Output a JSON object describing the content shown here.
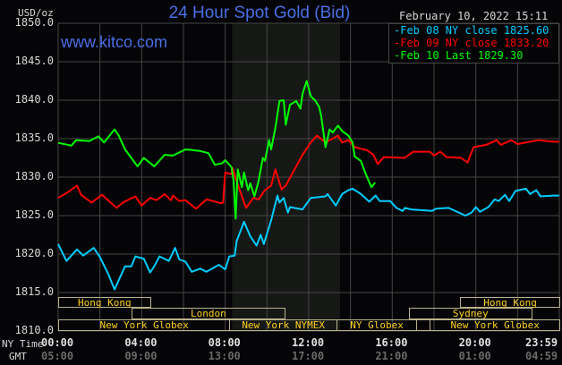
{
  "title": "24 Hour Spot Gold (Bid)",
  "website": "www.kitco.com",
  "timestamp": "February 10, 2022 15:11",
  "colors": {
    "feb08": "#00ccff",
    "feb09": "#ff0000",
    "feb10": "#00ff00",
    "title": "#4a6ee6",
    "session": "#ffd21e",
    "session_border": "#b8b08a",
    "grid": "#454545",
    "nymex_shade": "#161816"
  },
  "chart_data": {
    "type": "line",
    "title": "24 Hour Spot Gold (Bid)",
    "ylabel": "USD/oz",
    "ylim": [
      1810,
      1850
    ],
    "xlim_hours": [
      0,
      24
    ],
    "grid": true,
    "legend_placement": "top-right",
    "y_ticks": [
      "1850.0",
      "1845.0",
      "1840.0",
      "1835.0",
      "1830.0",
      "1825.0",
      "1820.0",
      "1815.0",
      "1810.0"
    ],
    "x_axis_label_ny": "NY Time",
    "x_axis_label_gmt": "GMT",
    "x_ticks_ny": [
      "00:00",
      "04:00",
      "08:00",
      "12:00",
      "16:00",
      "20:00",
      "23:59"
    ],
    "x_ticks_gmt": [
      "05:00",
      "09:00",
      "13:00",
      "17:00",
      "21:00",
      "01:00",
      "04:59"
    ],
    "series": [
      {
        "name": "Feb 08 NY close 1825.60",
        "key": "feb08",
        "label_parts": [
          "Feb 08 NY close",
          "1825.60"
        ],
        "points": [
          [
            0,
            1821.3
          ],
          [
            0.4,
            1819.1
          ],
          [
            0.9,
            1820.6
          ],
          [
            1.2,
            1819.8
          ],
          [
            1.7,
            1820.8
          ],
          [
            2.0,
            1819.6
          ],
          [
            2.4,
            1817.4
          ],
          [
            2.7,
            1815.4
          ],
          [
            3.2,
            1818.4
          ],
          [
            3.5,
            1818.4
          ],
          [
            3.7,
            1819.7
          ],
          [
            4.1,
            1819.4
          ],
          [
            4.4,
            1817.6
          ],
          [
            4.6,
            1818.4
          ],
          [
            4.85,
            1819.7
          ],
          [
            5.3,
            1819.1
          ],
          [
            5.6,
            1820.8
          ],
          [
            5.8,
            1819.3
          ],
          [
            6.1,
            1819.0
          ],
          [
            6.4,
            1817.7
          ],
          [
            6.8,
            1818.1
          ],
          [
            7.1,
            1817.7
          ],
          [
            7.7,
            1818.6
          ],
          [
            8.0,
            1818.0
          ],
          [
            8.2,
            1819.7
          ],
          [
            8.45,
            1819.8
          ],
          [
            8.55,
            1821.7
          ],
          [
            8.9,
            1824.2
          ],
          [
            9.2,
            1822.3
          ],
          [
            9.5,
            1821.1
          ],
          [
            9.7,
            1822.5
          ],
          [
            9.85,
            1821.3
          ],
          [
            10.2,
            1824.4
          ],
          [
            10.5,
            1827.6
          ],
          [
            10.6,
            1826.7
          ],
          [
            10.8,
            1827.3
          ],
          [
            11.0,
            1825.4
          ],
          [
            11.1,
            1826.1
          ],
          [
            11.7,
            1825.8
          ],
          [
            12.1,
            1827.3
          ],
          [
            12.8,
            1827.5
          ],
          [
            12.9,
            1827.8
          ],
          [
            13.3,
            1826.3
          ],
          [
            13.6,
            1827.8
          ],
          [
            13.9,
            1828.3
          ],
          [
            14.1,
            1828.5
          ],
          [
            14.5,
            1827.8
          ],
          [
            14.9,
            1826.8
          ],
          [
            15.2,
            1827.6
          ],
          [
            15.4,
            1826.9
          ],
          [
            15.9,
            1826.9
          ],
          [
            16.2,
            1826.0
          ],
          [
            16.5,
            1825.6
          ],
          [
            16.6,
            1826.0
          ],
          [
            16.9,
            1825.8
          ],
          [
            17.9,
            1825.6
          ],
          [
            18.1,
            1825.9
          ],
          [
            18.7,
            1826.0
          ],
          [
            19.1,
            1825.5
          ],
          [
            19.5,
            1825.0
          ],
          [
            19.8,
            1825.4
          ],
          [
            20.0,
            1826.1
          ],
          [
            20.2,
            1825.5
          ],
          [
            20.6,
            1826.1
          ],
          [
            20.9,
            1827.1
          ],
          [
            21.1,
            1826.9
          ],
          [
            21.4,
            1827.7
          ],
          [
            21.6,
            1826.9
          ],
          [
            21.9,
            1828.2
          ],
          [
            22.4,
            1828.5
          ],
          [
            22.6,
            1827.8
          ],
          [
            22.9,
            1828.3
          ],
          [
            23.1,
            1827.5
          ],
          [
            23.7,
            1827.6
          ],
          [
            24,
            1827.6
          ]
        ]
      },
      {
        "name": "Feb 09 NY close 1833.20",
        "key": "feb09",
        "label_parts": [
          "Feb 09 NY close",
          "1833.20"
        ],
        "points": [
          [
            0,
            1827.3
          ],
          [
            0.5,
            1828.1
          ],
          [
            0.9,
            1828.9
          ],
          [
            1.1,
            1827.7
          ],
          [
            1.6,
            1826.7
          ],
          [
            2.1,
            1827.7
          ],
          [
            2.8,
            1826.0
          ],
          [
            3.1,
            1826.7
          ],
          [
            3.7,
            1827.5
          ],
          [
            4.0,
            1826.3
          ],
          [
            4.4,
            1827.3
          ],
          [
            4.7,
            1827.0
          ],
          [
            5.1,
            1827.8
          ],
          [
            5.4,
            1827.0
          ],
          [
            5.5,
            1827.6
          ],
          [
            5.8,
            1826.9
          ],
          [
            6.1,
            1827.0
          ],
          [
            6.6,
            1825.9
          ],
          [
            7.1,
            1827.1
          ],
          [
            7.8,
            1826.6
          ],
          [
            7.9,
            1826.7
          ],
          [
            8.0,
            1830.6
          ],
          [
            8.3,
            1830.4
          ],
          [
            8.35,
            1831.2
          ],
          [
            8.6,
            1829.0
          ],
          [
            9.0,
            1826.0
          ],
          [
            9.35,
            1827.3
          ],
          [
            9.6,
            1827.1
          ],
          [
            9.9,
            1828.3
          ],
          [
            10.2,
            1828.9
          ],
          [
            10.4,
            1831.0
          ],
          [
            10.7,
            1828.4
          ],
          [
            10.9,
            1828.9
          ],
          [
            11.2,
            1830.4
          ],
          [
            11.7,
            1832.9
          ],
          [
            12.1,
            1834.5
          ],
          [
            12.4,
            1835.4
          ],
          [
            12.8,
            1834.5
          ],
          [
            13.4,
            1835.4
          ],
          [
            13.6,
            1834.5
          ],
          [
            13.9,
            1834.8
          ],
          [
            14.2,
            1833.9
          ],
          [
            14.8,
            1833.5
          ],
          [
            15.1,
            1832.9
          ],
          [
            15.3,
            1831.7
          ],
          [
            15.6,
            1832.6
          ],
          [
            16.6,
            1832.5
          ],
          [
            17.0,
            1833.3
          ],
          [
            17.8,
            1833.3
          ],
          [
            18.0,
            1832.8
          ],
          [
            18.3,
            1833.3
          ],
          [
            18.6,
            1832.6
          ],
          [
            19.3,
            1832.5
          ],
          [
            19.6,
            1831.9
          ],
          [
            19.9,
            1833.9
          ],
          [
            20.5,
            1834.2
          ],
          [
            21.0,
            1834.8
          ],
          [
            21.2,
            1834.2
          ],
          [
            21.7,
            1834.8
          ],
          [
            22.0,
            1834.3
          ],
          [
            23.0,
            1834.8
          ],
          [
            23.7,
            1834.6
          ],
          [
            24,
            1834.6
          ]
        ]
      },
      {
        "name": "Feb 10 Last 1829.30",
        "key": "feb10",
        "label_parts": [
          "Feb 10 Last",
          "1829.30"
        ],
        "points": [
          [
            0,
            1834.45
          ],
          [
            0.64,
            1834.1
          ],
          [
            0.86,
            1834.8
          ],
          [
            1.5,
            1834.7
          ],
          [
            1.93,
            1835.3
          ],
          [
            2.2,
            1834.5
          ],
          [
            2.7,
            1836.2
          ],
          [
            2.9,
            1835.4
          ],
          [
            3.2,
            1833.6
          ],
          [
            3.8,
            1831.4
          ],
          [
            4.1,
            1832.5
          ],
          [
            4.6,
            1831.4
          ],
          [
            5.1,
            1832.9
          ],
          [
            5.5,
            1832.8
          ],
          [
            6.1,
            1833.6
          ],
          [
            6.8,
            1833.4
          ],
          [
            7.2,
            1833.1
          ],
          [
            7.5,
            1831.6
          ],
          [
            7.85,
            1831.8
          ],
          [
            8.0,
            1832.2
          ],
          [
            8.3,
            1831.3
          ],
          [
            8.4,
            1829.5
          ],
          [
            8.5,
            1824.6
          ],
          [
            8.6,
            1831.0
          ],
          [
            8.8,
            1828.7
          ],
          [
            8.9,
            1830.6
          ],
          [
            9.1,
            1828.3
          ],
          [
            9.2,
            1829.2
          ],
          [
            9.4,
            1827.5
          ],
          [
            9.6,
            1829.5
          ],
          [
            9.8,
            1832.5
          ],
          [
            9.9,
            1832.1
          ],
          [
            10.1,
            1834.8
          ],
          [
            10.2,
            1833.6
          ],
          [
            10.4,
            1836.4
          ],
          [
            10.6,
            1839.9
          ],
          [
            10.8,
            1840.0
          ],
          [
            10.9,
            1836.8
          ],
          [
            11.1,
            1839.4
          ],
          [
            11.4,
            1839.9
          ],
          [
            11.6,
            1838.9
          ],
          [
            11.7,
            1840.8
          ],
          [
            11.9,
            1842.5
          ],
          [
            12.1,
            1840.5
          ],
          [
            12.3,
            1840.0
          ],
          [
            12.5,
            1839.1
          ],
          [
            12.6,
            1837.9
          ],
          [
            12.8,
            1833.9
          ],
          [
            13.0,
            1836.2
          ],
          [
            13.15,
            1835.8
          ],
          [
            13.4,
            1836.7
          ],
          [
            13.6,
            1836.0
          ],
          [
            13.9,
            1835.4
          ],
          [
            14.1,
            1834.5
          ],
          [
            14.2,
            1832.7
          ],
          [
            14.5,
            1832.1
          ],
          [
            14.7,
            1830.6
          ],
          [
            15.0,
            1828.7
          ],
          [
            15.18,
            1829.3
          ]
        ]
      }
    ]
  },
  "sessions": {
    "row1": [
      {
        "label": "Hong Kong",
        "start": 0,
        "end": 4.4
      },
      {
        "label": "Hong Kong",
        "start": 19.25,
        "end": 24
      }
    ],
    "row2": [
      {
        "label": "London",
        "start": 3.5,
        "end": 10.85
      },
      {
        "label": "Sydney",
        "start": 16.8,
        "end": 22.65
      }
    ],
    "row3": [
      {
        "label": "New York Globex",
        "start": 0,
        "end": 8.2
      },
      {
        "label": "New York NYMEX",
        "start": 8.2,
        "end": 13.33
      },
      {
        "label": "NY Globex",
        "start": 13.33,
        "end": 17.15
      },
      {
        "label": "",
        "start": 17.15,
        "end": 17.8
      },
      {
        "label": "New York Globex",
        "start": 17.8,
        "end": 24
      }
    ]
  },
  "nymex_shade_hours": [
    8.33,
    13.5
  ]
}
